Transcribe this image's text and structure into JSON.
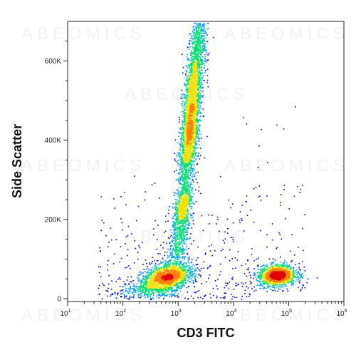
{
  "chart_data": {
    "type": "scatter",
    "subtype": "flow-cytometry-density-plot",
    "xlabel": "CD3 FITC",
    "ylabel": "Side Scatter",
    "x_scale": "log",
    "xlim": [
      10,
      1000000
    ],
    "ylim": [
      0,
      700000
    ],
    "x_ticks": [
      {
        "value": 10,
        "label": "10",
        "sup": "1"
      },
      {
        "value": 100,
        "label": "10",
        "sup": "2"
      },
      {
        "value": 1000,
        "label": "10",
        "sup": "3"
      },
      {
        "value": 10000,
        "label": "10",
        "sup": "4"
      },
      {
        "value": 100000,
        "label": "10",
        "sup": "5"
      },
      {
        "value": 1000000,
        "label": "10",
        "sup": "6"
      }
    ],
    "y_ticks": [
      {
        "value": 0,
        "label": "0"
      },
      {
        "value": 200000,
        "label": "200K"
      },
      {
        "value": 400000,
        "label": "400K"
      },
      {
        "value": 600000,
        "label": "600K"
      }
    ],
    "color_scale": [
      "#0000c8",
      "#00a0ff",
      "#00e070",
      "#f0e000",
      "#ff8000",
      "#e00000"
    ],
    "populations": [
      {
        "x_center": 600,
        "y_center": 55000,
        "density": "high"
      },
      {
        "x_center": 1500,
        "y_center": 230000,
        "density": "medium"
      },
      {
        "x_center": 2000,
        "y_center": 400000,
        "density": "high"
      },
      {
        "x_center": 2200,
        "y_center": 560000,
        "density": "high"
      },
      {
        "x_center": 60000,
        "y_center": 60000,
        "density": "high"
      }
    ],
    "grid": false,
    "legend": "none"
  },
  "watermark": "ABEOMICS"
}
